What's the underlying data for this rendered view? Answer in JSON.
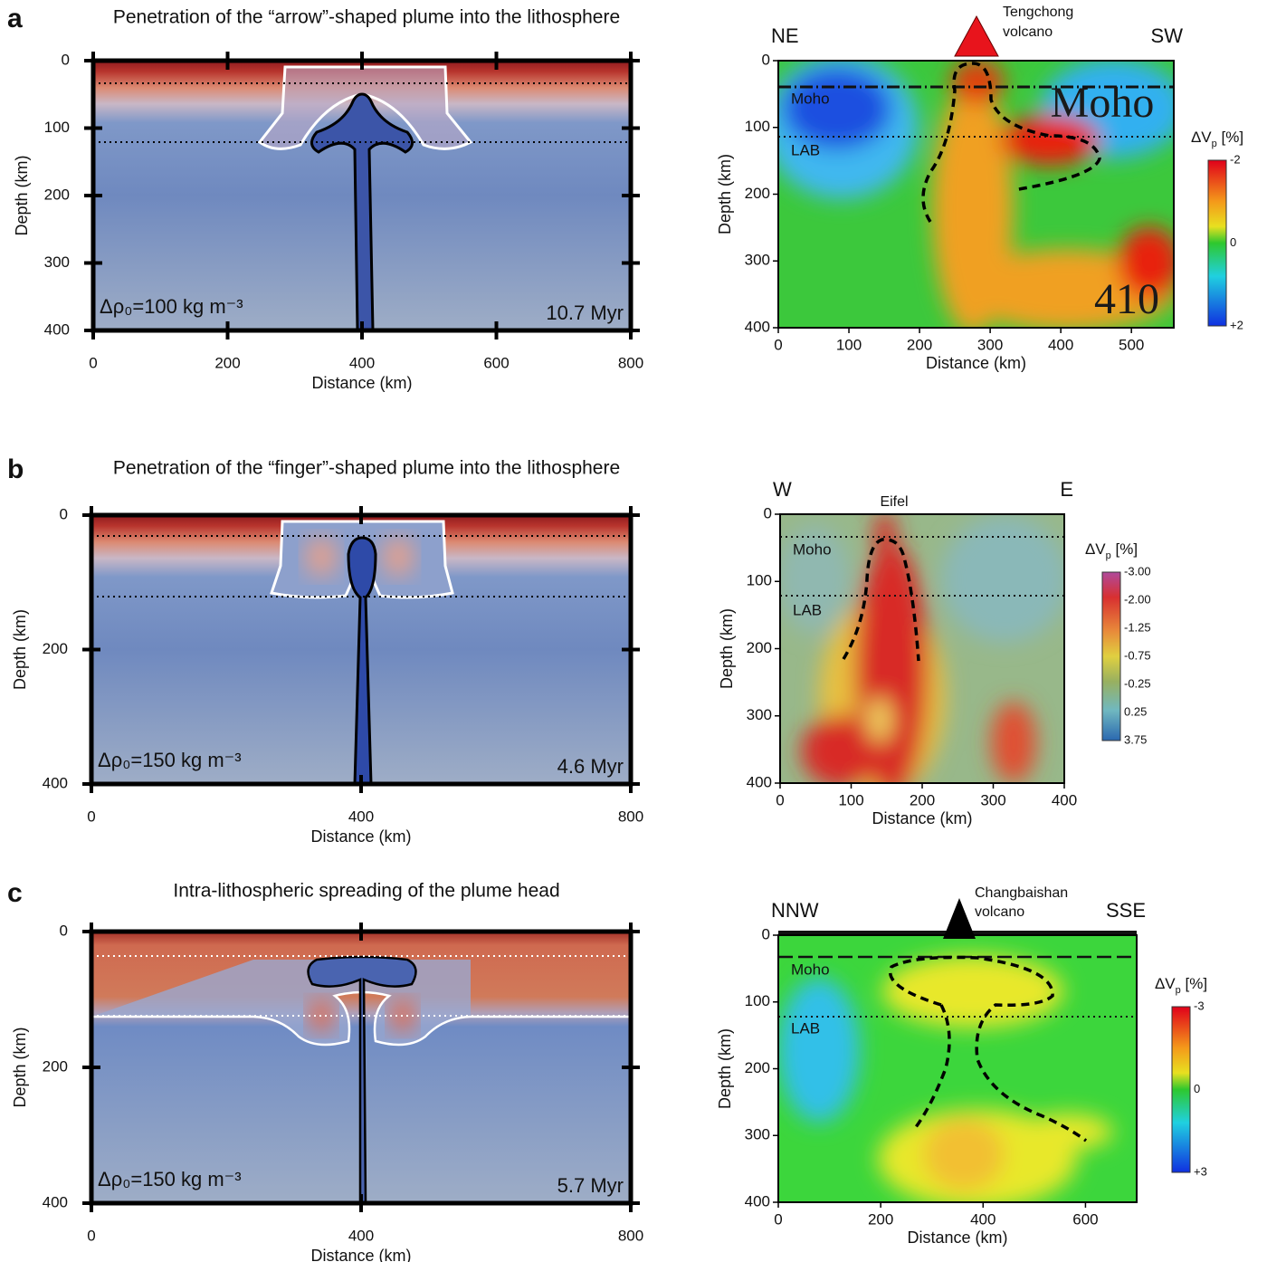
{
  "panels": [
    {
      "label": "a",
      "title": "Penetration of the “arrow”-shaped plume into the lithosphere",
      "model": {
        "xlabel": "Distance (km)",
        "ylabel": "Depth (km)",
        "xlim": [
          0,
          800
        ],
        "ylim": [
          0,
          400
        ],
        "xticks": [
          0,
          200,
          400,
          600,
          800
        ],
        "yticks": [
          0,
          100,
          200,
          300,
          400
        ],
        "density": "Δρ₀=100 kg m⁻³",
        "age": "10.7 Myr"
      },
      "tomography": {
        "xlabel": "Distance (km)",
        "ylabel": "Depth (km)",
        "xlim": [
          0,
          560
        ],
        "ylim": [
          0,
          400
        ],
        "xticks": [
          0,
          100,
          200,
          300,
          400,
          500
        ],
        "yticks": [
          0,
          100,
          200,
          300,
          400
        ],
        "left": "NE",
        "right": "SW",
        "site": [
          "Tengchong",
          "volcano"
        ],
        "layers": [
          "Moho",
          "LAB"
        ],
        "image_labels": [
          "Moho",
          "410"
        ],
        "colorbar": {
          "title": [
            "ΔV",
            "p",
            " [%]"
          ],
          "labels": [
            "-2",
            "0",
            "+2"
          ]
        }
      }
    },
    {
      "label": "b",
      "title": "Penetration of the “finger”-shaped plume into the lithosphere",
      "model": {
        "xlabel": "Distance (km)",
        "ylabel": "Depth (km)",
        "xlim": [
          0,
          800
        ],
        "ylim": [
          0,
          400
        ],
        "xticks": [
          0,
          400,
          800
        ],
        "yticks": [
          0,
          200,
          400
        ],
        "density": "Δρ₀=150 kg m⁻³",
        "age": "4.6 Myr"
      },
      "tomography": {
        "xlabel": "Distance (km)",
        "ylabel": "Depth (km)",
        "xlim": [
          0,
          400
        ],
        "ylim": [
          0,
          400
        ],
        "xticks": [
          0,
          100,
          200,
          300,
          400
        ],
        "yticks": [
          0,
          100,
          200,
          300,
          400
        ],
        "left": "W",
        "right": "E",
        "site": [
          "Eifel"
        ],
        "layers": [
          "Moho",
          "LAB"
        ],
        "image_labels": [],
        "colorbar": {
          "title": [
            "ΔV",
            "p",
            " [%]"
          ],
          "labels": [
            "-3.00",
            "-2.00",
            "-1.25",
            "-0.75",
            "-0.25",
            "0.25",
            "3.75"
          ]
        }
      }
    },
    {
      "label": "c",
      "title": "Intra-lithospheric spreading of the plume head",
      "model": {
        "xlabel": "Distance (km)",
        "ylabel": "Depth (km)",
        "xlim": [
          0,
          800
        ],
        "ylim": [
          0,
          400
        ],
        "xticks": [
          0,
          400,
          800
        ],
        "yticks": [
          0,
          200,
          400
        ],
        "density": "Δρ₀=150 kg m⁻³",
        "age": "5.7 Myr"
      },
      "tomography": {
        "xlabel": "Distance (km)",
        "ylabel": "Depth (km)",
        "xlim": [
          0,
          700
        ],
        "ylim": [
          0,
          400
        ],
        "xticks": [
          0,
          200,
          400,
          600
        ],
        "yticks": [
          0,
          100,
          200,
          300,
          400
        ],
        "left": "NNW",
        "right": "SSE",
        "site": [
          "Changbaishan",
          "volcano"
        ],
        "layers": [
          "Moho",
          "LAB"
        ],
        "image_labels": [],
        "colorbar": {
          "title": [
            "ΔV",
            "p",
            " [%]"
          ],
          "labels": [
            "-3",
            "0",
            "+3"
          ]
        }
      }
    }
  ]
}
